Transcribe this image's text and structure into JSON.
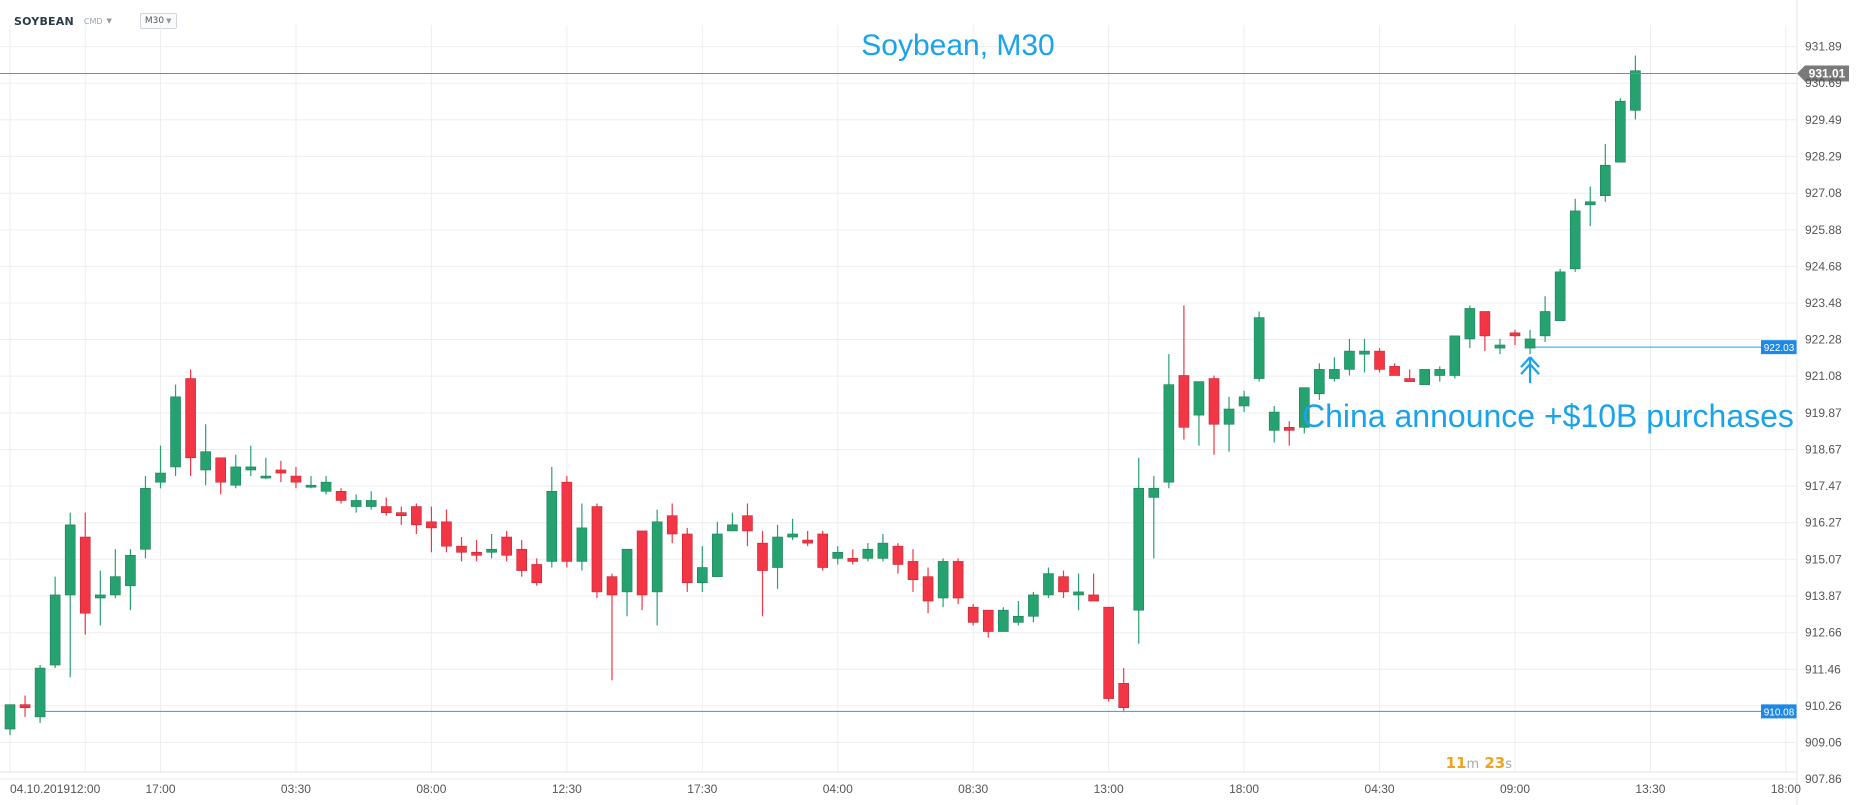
{
  "toolbar": {
    "symbol": "SOYBEAN",
    "category": "CMD",
    "timeframe": "M30"
  },
  "timer": {
    "minutes": "11",
    "minutes_unit": "m",
    "seconds": "23",
    "seconds_unit": "s"
  },
  "colors": {
    "up": "#26a270",
    "down": "#f23645",
    "annotation": "#1aa3e8",
    "marker": "#1e88e5",
    "price_line": "#888888",
    "grid": "#eeeeee"
  },
  "chart_data": {
    "type": "candlestick",
    "title": "Soybean, M30",
    "annotation": "China announce +$10B purchases",
    "ylim": [
      907.5,
      932.6
    ],
    "y_ticks": [
      "907.86",
      "909.06",
      "910.26",
      "911.46",
      "912.66",
      "913.87",
      "915.07",
      "916.27",
      "917.47",
      "918.67",
      "919.87",
      "921.08",
      "922.28",
      "923.48",
      "924.68",
      "925.88",
      "927.08",
      "928.29",
      "929.49",
      "930.69",
      "931.89"
    ],
    "x_ticks": [
      {
        "label": "04.10.2019",
        "bar": 0
      },
      {
        "label": "12:00",
        "bar": 5
      },
      {
        "label": "17:00",
        "bar": 10
      },
      {
        "label": "03:30",
        "bar": 19
      },
      {
        "label": "08:00",
        "bar": 28
      },
      {
        "label": "12:30",
        "bar": 37
      },
      {
        "label": "17:30",
        "bar": 46
      },
      {
        "label": "04:00",
        "bar": 55
      },
      {
        "label": "08:30",
        "bar": 64
      },
      {
        "label": "13:00",
        "bar": 73
      },
      {
        "label": "18:00",
        "bar": 82
      },
      {
        "label": "04:30",
        "bar": 91
      },
      {
        "label": "09:00",
        "bar": 100
      },
      {
        "label": "13:30",
        "bar": 109
      },
      {
        "label": "18:00",
        "bar": 118
      }
    ],
    "current_price": "931.01",
    "levels": [
      {
        "label": "922.03",
        "value": 922.03,
        "from_bar": 101
      },
      {
        "label": "910.08",
        "value": 910.08,
        "from_bar": 2
      }
    ],
    "arrow_bar": 101,
    "candles": [
      {
        "o": 909.5,
        "h": 910.3,
        "l": 909.3,
        "c": 910.3
      },
      {
        "o": 910.3,
        "h": 910.6,
        "l": 909.9,
        "c": 910.2
      },
      {
        "o": 909.9,
        "h": 911.6,
        "l": 909.7,
        "c": 911.5
      },
      {
        "o": 911.6,
        "h": 914.5,
        "l": 911.5,
        "c": 913.9
      },
      {
        "o": 913.9,
        "h": 916.6,
        "l": 911.2,
        "c": 916.2
      },
      {
        "o": 915.8,
        "h": 916.6,
        "l": 912.6,
        "c": 913.3
      },
      {
        "o": 913.8,
        "h": 914.7,
        "l": 912.9,
        "c": 913.9
      },
      {
        "o": 913.9,
        "h": 915.4,
        "l": 913.8,
        "c": 914.5
      },
      {
        "o": 914.2,
        "h": 915.4,
        "l": 913.4,
        "c": 915.2
      },
      {
        "o": 915.4,
        "h": 917.8,
        "l": 915.1,
        "c": 917.4
      },
      {
        "o": 917.6,
        "h": 918.8,
        "l": 917.4,
        "c": 917.9
      },
      {
        "o": 918.1,
        "h": 920.8,
        "l": 917.8,
        "c": 920.4
      },
      {
        "o": 921.0,
        "h": 921.3,
        "l": 917.8,
        "c": 918.4
      },
      {
        "o": 918.0,
        "h": 919.5,
        "l": 917.5,
        "c": 918.6
      },
      {
        "o": 918.4,
        "h": 918.4,
        "l": 917.2,
        "c": 917.6
      },
      {
        "o": 917.5,
        "h": 918.5,
        "l": 917.4,
        "c": 918.1
      },
      {
        "o": 918.0,
        "h": 918.8,
        "l": 917.8,
        "c": 918.1
      },
      {
        "o": 917.8,
        "h": 918.4,
        "l": 917.7,
        "c": 917.8
      },
      {
        "o": 918.0,
        "h": 918.3,
        "l": 917.6,
        "c": 917.9
      },
      {
        "o": 917.8,
        "h": 918.1,
        "l": 917.4,
        "c": 917.6
      },
      {
        "o": 917.5,
        "h": 917.8,
        "l": 917.4,
        "c": 917.5
      },
      {
        "o": 917.3,
        "h": 917.8,
        "l": 917.2,
        "c": 917.6
      },
      {
        "o": 917.3,
        "h": 917.4,
        "l": 916.9,
        "c": 917.0
      },
      {
        "o": 916.8,
        "h": 917.2,
        "l": 916.6,
        "c": 917.0
      },
      {
        "o": 916.8,
        "h": 917.3,
        "l": 916.7,
        "c": 917.0
      },
      {
        "o": 916.8,
        "h": 917.1,
        "l": 916.5,
        "c": 916.6
      },
      {
        "o": 916.6,
        "h": 916.8,
        "l": 916.2,
        "c": 916.5
      },
      {
        "o": 916.8,
        "h": 916.9,
        "l": 915.9,
        "c": 916.2
      },
      {
        "o": 916.3,
        "h": 916.8,
        "l": 915.3,
        "c": 916.1
      },
      {
        "o": 916.3,
        "h": 916.7,
        "l": 915.3,
        "c": 915.5
      },
      {
        "o": 915.5,
        "h": 915.8,
        "l": 915.0,
        "c": 915.3
      },
      {
        "o": 915.3,
        "h": 915.7,
        "l": 915.0,
        "c": 915.2
      },
      {
        "o": 915.3,
        "h": 915.9,
        "l": 915.1,
        "c": 915.4
      },
      {
        "o": 915.8,
        "h": 916.0,
        "l": 915.0,
        "c": 915.2
      },
      {
        "o": 915.4,
        "h": 915.7,
        "l": 914.5,
        "c": 914.7
      },
      {
        "o": 914.9,
        "h": 915.1,
        "l": 914.2,
        "c": 914.3
      },
      {
        "o": 915.0,
        "h": 918.1,
        "l": 914.8,
        "c": 917.3
      },
      {
        "o": 917.6,
        "h": 917.8,
        "l": 914.8,
        "c": 915.0
      },
      {
        "o": 915.0,
        "h": 916.9,
        "l": 914.7,
        "c": 916.1
      },
      {
        "o": 916.8,
        "h": 916.9,
        "l": 913.8,
        "c": 914.0
      },
      {
        "o": 914.5,
        "h": 914.6,
        "l": 911.1,
        "c": 913.9
      },
      {
        "o": 914.0,
        "h": 915.3,
        "l": 913.2,
        "c": 915.4
      },
      {
        "o": 916.0,
        "h": 916.0,
        "l": 913.4,
        "c": 913.9
      },
      {
        "o": 914.0,
        "h": 916.7,
        "l": 912.9,
        "c": 916.3
      },
      {
        "o": 916.5,
        "h": 916.9,
        "l": 915.6,
        "c": 915.9
      },
      {
        "o": 915.9,
        "h": 916.1,
        "l": 914.0,
        "c": 914.3
      },
      {
        "o": 914.3,
        "h": 915.5,
        "l": 914.0,
        "c": 914.8
      },
      {
        "o": 914.5,
        "h": 916.3,
        "l": 914.5,
        "c": 915.9
      },
      {
        "o": 916.0,
        "h": 916.6,
        "l": 916.0,
        "c": 916.2
      },
      {
        "o": 916.5,
        "h": 916.9,
        "l": 915.5,
        "c": 916.0
      },
      {
        "o": 915.6,
        "h": 916.0,
        "l": 913.2,
        "c": 914.7
      },
      {
        "o": 914.8,
        "h": 916.2,
        "l": 914.1,
        "c": 915.8
      },
      {
        "o": 915.8,
        "h": 916.4,
        "l": 915.7,
        "c": 915.9
      },
      {
        "o": 915.7,
        "h": 916.0,
        "l": 915.5,
        "c": 915.6
      },
      {
        "o": 915.9,
        "h": 916.0,
        "l": 914.7,
        "c": 914.8
      },
      {
        "o": 915.1,
        "h": 915.5,
        "l": 914.9,
        "c": 915.3
      },
      {
        "o": 915.1,
        "h": 915.4,
        "l": 914.9,
        "c": 915.0
      },
      {
        "o": 915.1,
        "h": 915.6,
        "l": 915.0,
        "c": 915.4
      },
      {
        "o": 915.1,
        "h": 915.9,
        "l": 915.0,
        "c": 915.6
      },
      {
        "o": 915.5,
        "h": 915.6,
        "l": 914.6,
        "c": 914.9
      },
      {
        "o": 915.0,
        "h": 915.4,
        "l": 914.0,
        "c": 914.4
      },
      {
        "o": 914.5,
        "h": 914.8,
        "l": 913.3,
        "c": 913.7
      },
      {
        "o": 913.8,
        "h": 915.1,
        "l": 913.5,
        "c": 915.0
      },
      {
        "o": 915.0,
        "h": 915.1,
        "l": 913.6,
        "c": 913.8
      },
      {
        "o": 913.5,
        "h": 913.6,
        "l": 912.9,
        "c": 913.0
      },
      {
        "o": 913.4,
        "h": 913.4,
        "l": 912.5,
        "c": 912.7
      },
      {
        "o": 912.7,
        "h": 913.5,
        "l": 912.7,
        "c": 913.4
      },
      {
        "o": 913.0,
        "h": 913.7,
        "l": 912.9,
        "c": 913.2
      },
      {
        "o": 913.2,
        "h": 914.0,
        "l": 913.0,
        "c": 913.9
      },
      {
        "o": 913.9,
        "h": 914.8,
        "l": 913.8,
        "c": 914.6
      },
      {
        "o": 914.5,
        "h": 914.7,
        "l": 913.8,
        "c": 914.0
      },
      {
        "o": 913.9,
        "h": 914.6,
        "l": 913.4,
        "c": 914.0
      },
      {
        "o": 913.9,
        "h": 914.6,
        "l": 913.8,
        "c": 913.7
      },
      {
        "o": 913.5,
        "h": 913.5,
        "l": 910.4,
        "c": 910.5
      },
      {
        "o": 911.0,
        "h": 911.5,
        "l": 910.1,
        "c": 910.2
      },
      {
        "o": 913.4,
        "h": 918.4,
        "l": 912.3,
        "c": 917.4
      },
      {
        "o": 917.1,
        "h": 917.8,
        "l": 915.1,
        "c": 917.4
      },
      {
        "o": 917.6,
        "h": 921.8,
        "l": 917.4,
        "c": 920.8
      },
      {
        "o": 921.1,
        "h": 923.4,
        "l": 919.0,
        "c": 919.4
      },
      {
        "o": 919.8,
        "h": 920.9,
        "l": 918.8,
        "c": 920.9
      },
      {
        "o": 921.0,
        "h": 921.1,
        "l": 918.5,
        "c": 919.5
      },
      {
        "o": 919.5,
        "h": 920.4,
        "l": 918.6,
        "c": 920.0
      },
      {
        "o": 920.1,
        "h": 920.6,
        "l": 919.9,
        "c": 920.4
      },
      {
        "o": 921.0,
        "h": 923.2,
        "l": 920.9,
        "c": 923.0
      },
      {
        "o": 919.3,
        "h": 920.1,
        "l": 918.9,
        "c": 919.9
      },
      {
        "o": 919.4,
        "h": 919.6,
        "l": 918.8,
        "c": 919.3
      },
      {
        "o": 919.4,
        "h": 920.7,
        "l": 919.2,
        "c": 920.7
      },
      {
        "o": 920.5,
        "h": 921.5,
        "l": 920.3,
        "c": 921.3
      },
      {
        "o": 921.0,
        "h": 921.7,
        "l": 920.9,
        "c": 921.3
      },
      {
        "o": 921.3,
        "h": 922.3,
        "l": 921.1,
        "c": 921.9
      },
      {
        "o": 921.8,
        "h": 922.3,
        "l": 921.2,
        "c": 921.9
      },
      {
        "o": 921.9,
        "h": 922.0,
        "l": 921.2,
        "c": 921.3
      },
      {
        "o": 921.4,
        "h": 921.5,
        "l": 921.1,
        "c": 921.1
      },
      {
        "o": 921.0,
        "h": 921.3,
        "l": 920.9,
        "c": 920.9
      },
      {
        "o": 920.8,
        "h": 921.3,
        "l": 920.8,
        "c": 921.3
      },
      {
        "o": 921.1,
        "h": 921.4,
        "l": 920.9,
        "c": 921.3
      },
      {
        "o": 921.1,
        "h": 922.4,
        "l": 921.0,
        "c": 922.4
      },
      {
        "o": 922.3,
        "h": 923.4,
        "l": 922.0,
        "c": 923.3
      },
      {
        "o": 923.2,
        "h": 923.2,
        "l": 921.9,
        "c": 922.4
      },
      {
        "o": 922.0,
        "h": 922.3,
        "l": 921.8,
        "c": 922.1
      },
      {
        "o": 922.5,
        "h": 922.6,
        "l": 922.1,
        "c": 922.4
      },
      {
        "o": 922.0,
        "h": 922.6,
        "l": 921.8,
        "c": 922.3
      },
      {
        "o": 922.4,
        "h": 923.7,
        "l": 922.2,
        "c": 923.2
      },
      {
        "o": 922.9,
        "h": 924.6,
        "l": 922.9,
        "c": 924.5
      },
      {
        "o": 924.6,
        "h": 926.9,
        "l": 924.5,
        "c": 926.5
      },
      {
        "o": 926.7,
        "h": 927.3,
        "l": 926.0,
        "c": 926.8
      },
      {
        "o": 927.0,
        "h": 928.7,
        "l": 926.8,
        "c": 928.0
      },
      {
        "o": 928.1,
        "h": 930.2,
        "l": 928.1,
        "c": 930.1
      },
      {
        "o": 929.8,
        "h": 931.6,
        "l": 929.5,
        "c": 931.1
      }
    ]
  }
}
